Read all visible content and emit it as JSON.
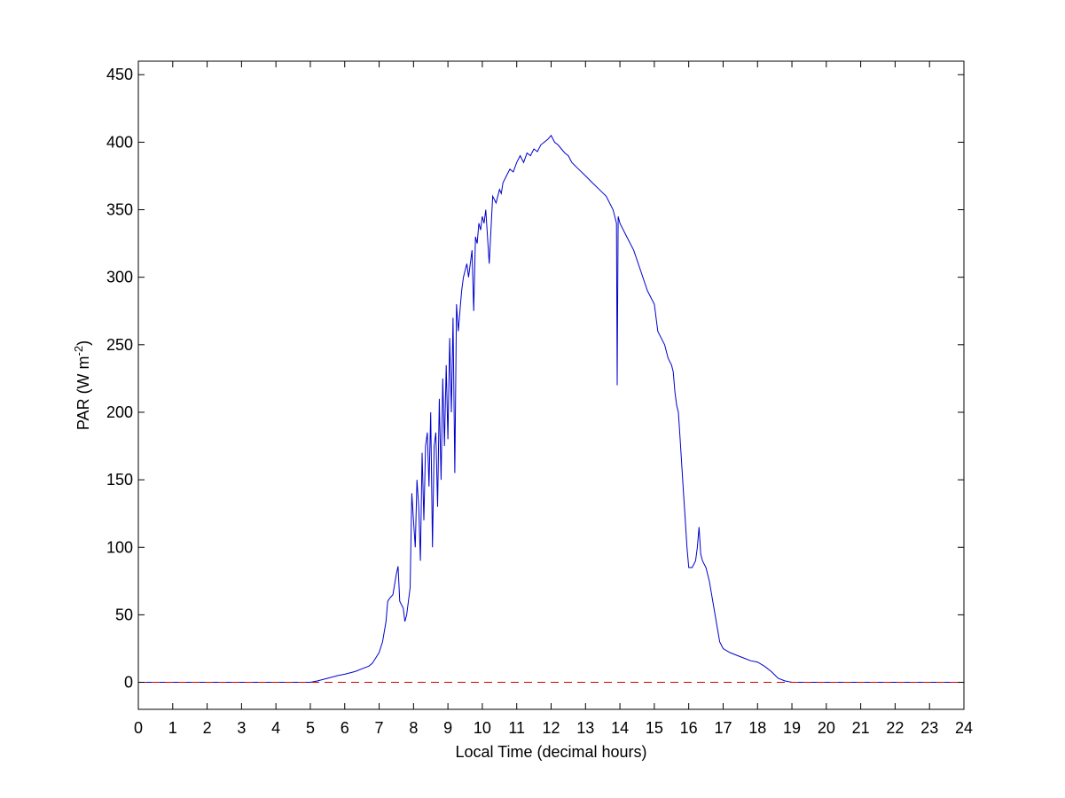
{
  "chart_data": {
    "type": "line",
    "title": "",
    "xlabel": "Local Time (decimal hours)",
    "ylabel": {
      "main": "PAR (W m",
      "superscript": "-2",
      "close": ")"
    },
    "xlim": [
      0,
      24
    ],
    "ylim": [
      -20,
      460
    ],
    "xticks": [
      0,
      1,
      2,
      3,
      4,
      5,
      6,
      7,
      8,
      9,
      10,
      11,
      12,
      13,
      14,
      15,
      16,
      17,
      18,
      19,
      20,
      21,
      22,
      23,
      24
    ],
    "yticks": [
      0,
      50,
      100,
      150,
      200,
      250,
      300,
      350,
      400,
      450
    ],
    "grid": false,
    "legend": "none",
    "series": [
      {
        "color": "#0000cc",
        "style": "solid",
        "x": [
          0,
          5.0,
          5.2,
          5.5,
          5.8,
          6.0,
          6.3,
          6.5,
          6.7,
          6.8,
          6.9,
          7.0,
          7.1,
          7.2,
          7.25,
          7.3,
          7.4,
          7.5,
          7.55,
          7.6,
          7.7,
          7.75,
          7.8,
          7.9,
          7.95,
          8.0,
          8.05,
          8.1,
          8.15,
          8.2,
          8.25,
          8.3,
          8.35,
          8.4,
          8.45,
          8.5,
          8.55,
          8.6,
          8.65,
          8.7,
          8.75,
          8.8,
          8.85,
          8.9,
          8.95,
          9.0,
          9.05,
          9.1,
          9.15,
          9.2,
          9.25,
          9.3,
          9.35,
          9.4,
          9.45,
          9.5,
          9.55,
          9.6,
          9.7,
          9.75,
          9.8,
          9.85,
          9.9,
          9.95,
          10.0,
          10.05,
          10.1,
          10.2,
          10.3,
          10.4,
          10.5,
          10.55,
          10.6,
          10.7,
          10.8,
          10.9,
          11.0,
          11.1,
          11.2,
          11.3,
          11.4,
          11.5,
          11.6,
          11.7,
          11.8,
          11.9,
          12.0,
          12.1,
          12.2,
          12.3,
          12.4,
          12.5,
          12.6,
          12.8,
          13.0,
          13.2,
          13.4,
          13.6,
          13.8,
          13.85,
          13.9,
          13.92,
          13.95,
          14.0,
          14.2,
          14.4,
          14.6,
          14.8,
          15.0,
          15.1,
          15.2,
          15.3,
          15.4,
          15.5,
          15.55,
          15.6,
          15.65,
          15.7,
          15.75,
          15.8,
          15.85,
          15.9,
          15.95,
          16.0,
          16.1,
          16.2,
          16.25,
          16.3,
          16.35,
          16.4,
          16.5,
          16.6,
          16.7,
          16.8,
          16.9,
          17.0,
          17.2,
          17.4,
          17.6,
          17.8,
          18.0,
          18.2,
          18.4,
          18.6,
          18.8,
          19.0,
          24
        ],
        "y": [
          0,
          0,
          1,
          3,
          5,
          6,
          8,
          10,
          12,
          14,
          18,
          22,
          30,
          45,
          60,
          62,
          65,
          80,
          86,
          60,
          55,
          45,
          50,
          70,
          140,
          120,
          100,
          150,
          130,
          90,
          170,
          120,
          175,
          185,
          145,
          200,
          100,
          175,
          185,
          130,
          210,
          150,
          225,
          175,
          235,
          180,
          255,
          200,
          270,
          155,
          280,
          260,
          275,
          290,
          300,
          305,
          310,
          300,
          320,
          275,
          330,
          325,
          340,
          335,
          345,
          340,
          350,
          310,
          360,
          355,
          365,
          362,
          370,
          375,
          380,
          378,
          385,
          390,
          385,
          392,
          390,
          395,
          393,
          398,
          400,
          402,
          405,
          400,
          398,
          395,
          392,
          390,
          385,
          380,
          375,
          370,
          365,
          360,
          350,
          345,
          340,
          220,
          345,
          340,
          330,
          320,
          305,
          290,
          280,
          260,
          255,
          250,
          240,
          235,
          230,
          215,
          205,
          200,
          180,
          160,
          140,
          120,
          100,
          85,
          85,
          90,
          100,
          115,
          95,
          90,
          85,
          75,
          60,
          45,
          30,
          25,
          22,
          20,
          18,
          16,
          15,
          12,
          8,
          3,
          1,
          0,
          0
        ]
      },
      {
        "color": "#cc0000",
        "style": "dashed",
        "x": [
          0,
          24
        ],
        "y": [
          0,
          0
        ]
      }
    ]
  }
}
